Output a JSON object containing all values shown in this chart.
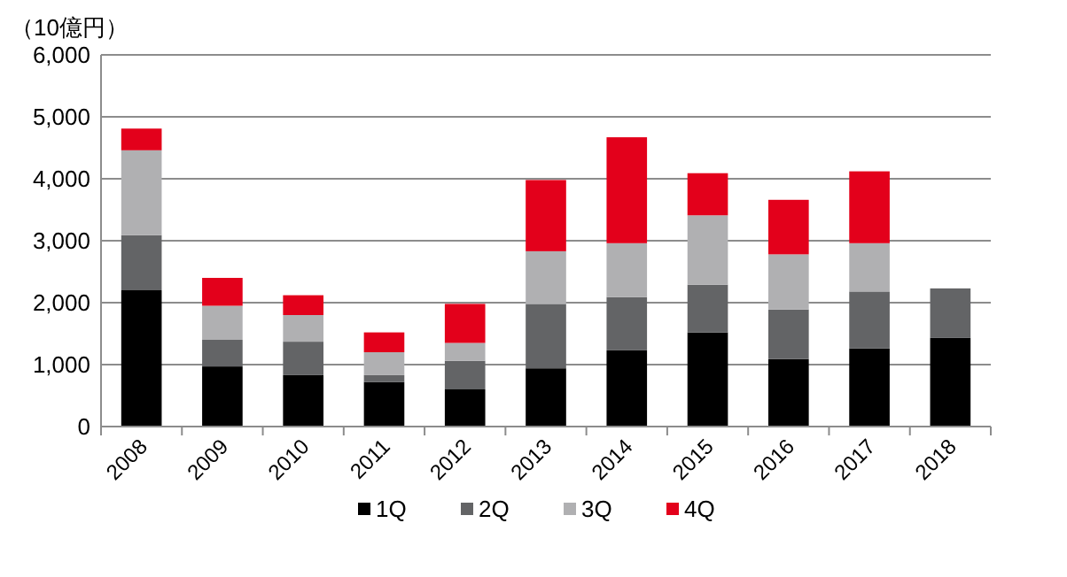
{
  "chart_data": {
    "type": "bar",
    "stacked": true,
    "ylabel": "（10億円）",
    "categories": [
      "2008",
      "2009",
      "2010",
      "2011",
      "2012",
      "2013",
      "2014",
      "2015",
      "2016",
      "2017",
      "2018"
    ],
    "series": [
      {
        "name": "1Q",
        "color": "#000000",
        "values": [
          2200,
          970,
          830,
          720,
          600,
          940,
          1230,
          1520,
          1090,
          1260,
          1430
        ]
      },
      {
        "name": "2Q",
        "color": "#636466",
        "values": [
          890,
          430,
          540,
          110,
          460,
          1040,
          860,
          770,
          800,
          920,
          800
        ]
      },
      {
        "name": "3Q",
        "color": "#b0b0b2",
        "values": [
          1370,
          550,
          430,
          370,
          290,
          850,
          870,
          1120,
          890,
          780,
          null
        ]
      },
      {
        "name": "4Q",
        "color": "#e3001b",
        "values": [
          350,
          450,
          320,
          320,
          630,
          1150,
          1710,
          680,
          880,
          1160,
          null
        ]
      }
    ],
    "ylim": [
      0,
      6000
    ],
    "yticks": [
      {
        "value": 0,
        "label": "0"
      },
      {
        "value": 1000,
        "label": "1,000"
      },
      {
        "value": 2000,
        "label": "2,000"
      },
      {
        "value": 3000,
        "label": "3,000"
      },
      {
        "value": 4000,
        "label": "4,000"
      },
      {
        "value": 5000,
        "label": "5,000"
      },
      {
        "value": 6000,
        "label": "6,000"
      }
    ],
    "grid": "y",
    "legend": "bottom"
  }
}
